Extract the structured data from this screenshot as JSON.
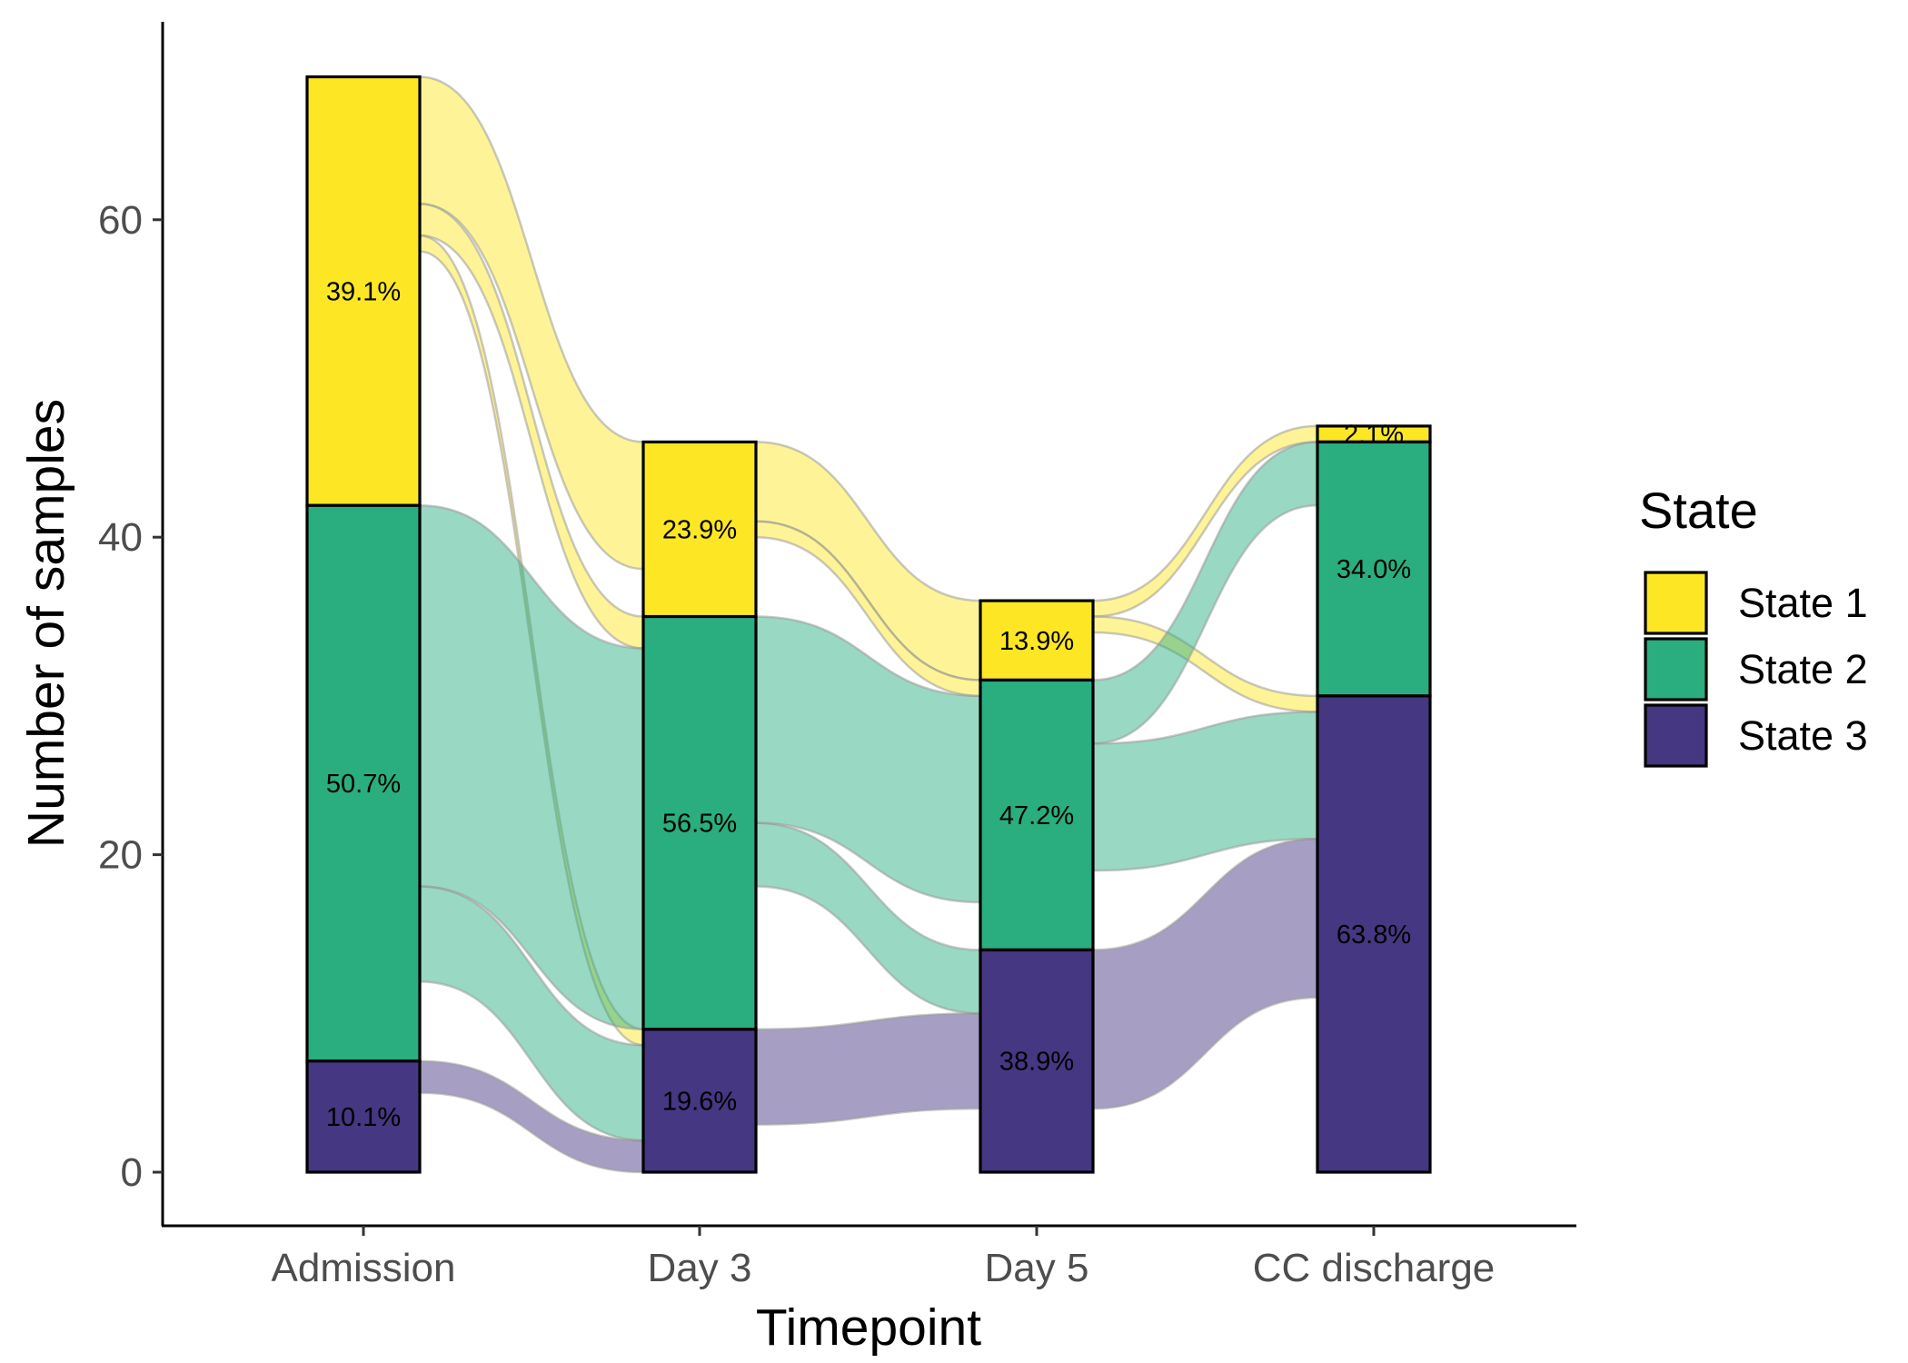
{
  "chart_data": {
    "type": "alluvial",
    "xlabel": "Timepoint",
    "ylabel": "Number of samples",
    "ylim": [
      -3.5,
      72.5
    ],
    "yticks": [
      0,
      20,
      40,
      60
    ],
    "grid": false,
    "categories": [
      "Admission",
      "Day 3",
      "Day 5",
      "CC discharge"
    ],
    "legend": {
      "title": "State",
      "placement": "right"
    },
    "states": [
      {
        "name": "State 1",
        "color": "#FDE725"
      },
      {
        "name": "State 2",
        "color": "#2AAE7F"
      },
      {
        "name": "State 3",
        "color": "#453781"
      }
    ],
    "stacks": [
      {
        "timepoint": "Admission",
        "counts": [
          27,
          35,
          7
        ],
        "labels": [
          "39.1%",
          "50.7%",
          "10.1%"
        ]
      },
      {
        "timepoint": "Day 3",
        "counts": [
          11,
          26,
          9
        ],
        "labels": [
          "23.9%",
          "56.5%",
          "19.6%"
        ]
      },
      {
        "timepoint": "Day 5",
        "counts": [
          5,
          17,
          14
        ],
        "labels": [
          "13.9%",
          "47.2%",
          "38.9%"
        ]
      },
      {
        "timepoint": "CC discharge",
        "counts": [
          1,
          16,
          30
        ],
        "labels": [
          "2.1%",
          "34.0%",
          "63.8%"
        ]
      }
    ],
    "flows": [
      {
        "from_timepoint": 0,
        "to_timepoint": 1,
        "matrix": [
          [
            8,
            2,
            1
          ],
          [
            0,
            24,
            6
          ],
          [
            0,
            0,
            2
          ]
        ]
      },
      {
        "from_timepoint": 1,
        "to_timepoint": 2,
        "matrix": [
          [
            5,
            1,
            0
          ],
          [
            0,
            13,
            4
          ],
          [
            0,
            0,
            6
          ]
        ]
      },
      {
        "from_timepoint": 2,
        "to_timepoint": 3,
        "matrix": [
          [
            1,
            0,
            1
          ],
          [
            0,
            4,
            8
          ],
          [
            0,
            0,
            10
          ]
        ]
      }
    ]
  }
}
